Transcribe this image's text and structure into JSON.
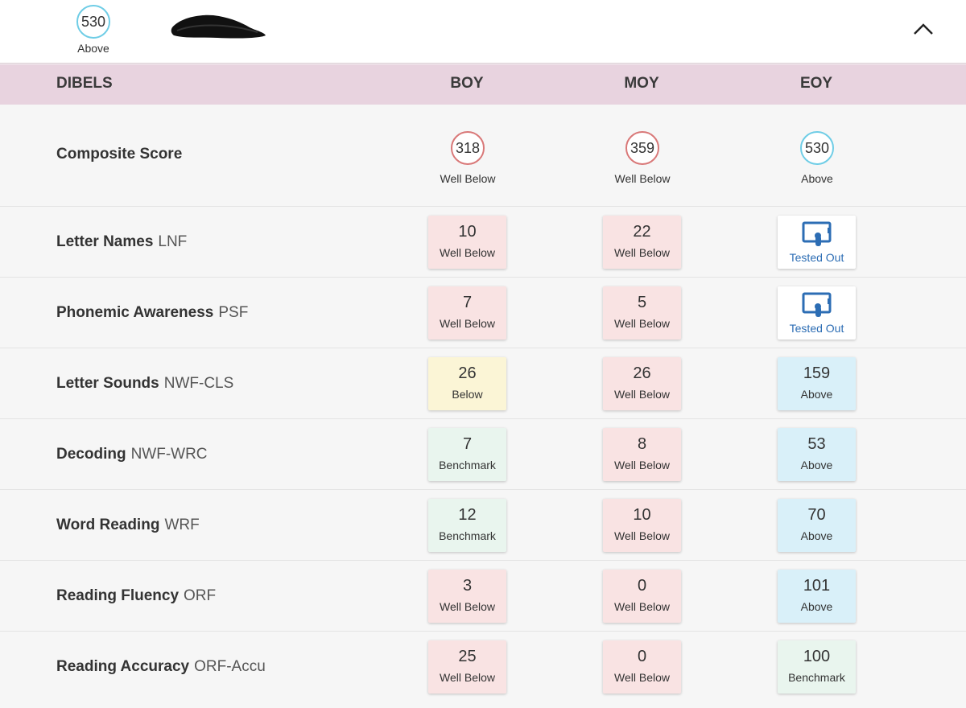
{
  "top": {
    "score": "530",
    "level": "Above"
  },
  "header": {
    "title": "DIBELS",
    "boy": "BOY",
    "moy": "MOY",
    "eoy": "EOY"
  },
  "composite": {
    "label": "Composite Score",
    "boy": {
      "score": "318",
      "level": "Well Below"
    },
    "moy": {
      "score": "359",
      "level": "Well Below"
    },
    "eoy": {
      "score": "530",
      "level": "Above"
    }
  },
  "rows": [
    {
      "name": "Letter Names",
      "abbr": "LNF",
      "boy": {
        "value": "10",
        "level": "Well Below"
      },
      "moy": {
        "value": "22",
        "level": "Well Below"
      },
      "eoy": {
        "value": "",
        "level": "Tested Out"
      }
    },
    {
      "name": "Phonemic Awareness",
      "abbr": "PSF",
      "boy": {
        "value": "7",
        "level": "Well Below"
      },
      "moy": {
        "value": "5",
        "level": "Well Below"
      },
      "eoy": {
        "value": "",
        "level": "Tested Out"
      }
    },
    {
      "name": "Letter Sounds",
      "abbr": "NWF-CLS",
      "boy": {
        "value": "26",
        "level": "Below"
      },
      "moy": {
        "value": "26",
        "level": "Well Below"
      },
      "eoy": {
        "value": "159",
        "level": "Above"
      }
    },
    {
      "name": "Decoding",
      "abbr": "NWF-WRC",
      "boy": {
        "value": "7",
        "level": "Benchmark"
      },
      "moy": {
        "value": "8",
        "level": "Well Below"
      },
      "eoy": {
        "value": "53",
        "level": "Above"
      }
    },
    {
      "name": "Word Reading",
      "abbr": "WRF",
      "boy": {
        "value": "12",
        "level": "Benchmark"
      },
      "moy": {
        "value": "10",
        "level": "Well Below"
      },
      "eoy": {
        "value": "70",
        "level": "Above"
      }
    },
    {
      "name": "Reading Fluency",
      "abbr": "ORF",
      "boy": {
        "value": "3",
        "level": "Well Below"
      },
      "moy": {
        "value": "0",
        "level": "Well Below"
      },
      "eoy": {
        "value": "101",
        "level": "Above"
      }
    },
    {
      "name": "Reading Accuracy",
      "abbr": "ORF-Accu",
      "boy": {
        "value": "25",
        "level": "Well Below"
      },
      "moy": {
        "value": "0",
        "level": "Well Below"
      },
      "eoy": {
        "value": "100",
        "level": "Benchmark"
      }
    }
  ],
  "colors": {
    "header_bg": "#e8d3df",
    "well_below": "#f9e3e3",
    "below": "#fbf5d6",
    "benchmark": "#e9f5ee",
    "above": "#d9f0f9",
    "ring_red": "#d97878",
    "ring_blue": "#6fcde6",
    "tested_out_icon": "#2c6db4"
  },
  "icons": {
    "collapse": "chevron-up-icon",
    "tested_out": "tablet-touch-icon"
  }
}
